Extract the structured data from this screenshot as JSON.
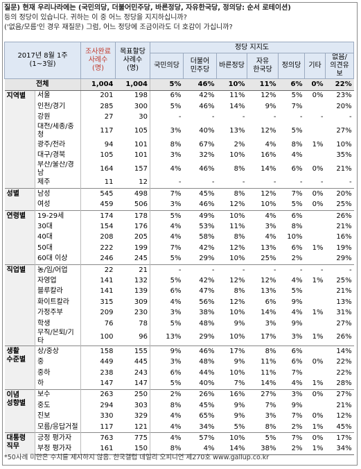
{
  "question": [
    "질문) 현재 우리나라에는 (국민의당, 더불어민주당, 바른정당, 자유한국당, 정의당: 순서 로테이션)",
    "등의 정당이 있습니다. 귀하는 이 중 어느 정당을 지지하십니까?",
    "('없음/모름'인 경우 재질문) 그럼, 어느 정당에 조금이라도 더 호감이 가십니까?"
  ],
  "table": {
    "header": {
      "period": "2017년 8월 1주\n(1~3일)",
      "sample": "조사완료\n사례수\n(명)",
      "target": "목표할당\n사례수\n(명)",
      "group": "정당 지지도",
      "columns": [
        "국민의당",
        "더불어\n민주당",
        "바른정당",
        "자유\n한국당",
        "정의당",
        "기타",
        "없음/\n의견유보"
      ]
    },
    "total": {
      "label": "전체",
      "sample": "1,004",
      "target": "1,004",
      "values": [
        "5%",
        "46%",
        "10%",
        "11%",
        "6%",
        "0%",
        "22%"
      ]
    },
    "groups": [
      {
        "label": "지역별",
        "rows": [
          {
            "label": "서울",
            "sample": "201",
            "target": "198",
            "values": [
              "6%",
              "42%",
              "11%",
              "12%",
              "5%",
              "0%",
              "23%"
            ]
          },
          {
            "label": "인천/경기",
            "sample": "285",
            "target": "300",
            "values": [
              "5%",
              "46%",
              "14%",
              "9%",
              "7%",
              null,
              "20%"
            ]
          },
          {
            "label": "강원",
            "sample": "27",
            "target": "30",
            "values": [
              "-",
              "-",
              "-",
              "-",
              "-",
              "-",
              "-"
            ]
          },
          {
            "label": "대전/세종/충청",
            "sample": "117",
            "target": "105",
            "values": [
              "3%",
              "40%",
              "13%",
              "12%",
              "5%",
              null,
              "27%"
            ]
          },
          {
            "label": "광주/전라",
            "sample": "94",
            "target": "101",
            "values": [
              "8%",
              "67%",
              "2%",
              "4%",
              "8%",
              "1%",
              "10%"
            ]
          },
          {
            "label": "대구/경북",
            "sample": "105",
            "target": "101",
            "values": [
              "3%",
              "32%",
              "10%",
              "16%",
              "4%",
              null,
              "35%"
            ]
          },
          {
            "label": "부산/울산/경남",
            "sample": "164",
            "target": "157",
            "values": [
              "4%",
              "46%",
              "8%",
              "14%",
              "6%",
              "0%",
              "21%"
            ]
          },
          {
            "label": "제주",
            "sample": "11",
            "target": "12",
            "values": [
              "-",
              "-",
              "-",
              "-",
              "-",
              "-",
              "-"
            ]
          }
        ]
      },
      {
        "label": "성별",
        "rows": [
          {
            "label": "남성",
            "sample": "545",
            "target": "498",
            "values": [
              "7%",
              "45%",
              "8%",
              "12%",
              "7%",
              "0%",
              "20%"
            ]
          },
          {
            "label": "여성",
            "sample": "459",
            "target": "506",
            "values": [
              "3%",
              "46%",
              "12%",
              "10%",
              "5%",
              "0%",
              "25%"
            ]
          }
        ]
      },
      {
        "label": "연령별",
        "rows": [
          {
            "label": "19-29세",
            "sample": "174",
            "target": "178",
            "values": [
              "5%",
              "49%",
              "10%",
              "4%",
              "6%",
              null,
              "26%"
            ]
          },
          {
            "label": "30대",
            "sample": "154",
            "target": "176",
            "values": [
              "4%",
              "53%",
              "11%",
              "3%",
              "8%",
              null,
              "21%"
            ]
          },
          {
            "label": "40대",
            "sample": "208",
            "target": "205",
            "values": [
              "4%",
              "58%",
              "8%",
              "4%",
              "10%",
              null,
              "16%"
            ]
          },
          {
            "label": "50대",
            "sample": "222",
            "target": "199",
            "values": [
              "7%",
              "42%",
              "12%",
              "13%",
              "6%",
              "1%",
              "19%"
            ]
          },
          {
            "label": "60대 이상",
            "sample": "246",
            "target": "245",
            "values": [
              "5%",
              "29%",
              "10%",
              "25%",
              "2%",
              null,
              "29%"
            ]
          }
        ]
      },
      {
        "label": "직업별",
        "rows": [
          {
            "label": "농/임/어업",
            "sample": "22",
            "target": "21",
            "values": [
              "-",
              "-",
              "-",
              "-",
              "-",
              "-",
              "-"
            ]
          },
          {
            "label": "자영업",
            "sample": "141",
            "target": "132",
            "values": [
              "5%",
              "42%",
              "12%",
              "12%",
              "4%",
              "1%",
              "25%"
            ]
          },
          {
            "label": "블루칼라",
            "sample": "141",
            "target": "139",
            "values": [
              "6%",
              "47%",
              "8%",
              "13%",
              "5%",
              null,
              "21%"
            ]
          },
          {
            "label": "화이트칼라",
            "sample": "315",
            "target": "309",
            "values": [
              "4%",
              "56%",
              "12%",
              "6%",
              "9%",
              null,
              "13%"
            ]
          },
          {
            "label": "가정주부",
            "sample": "209",
            "target": "230",
            "values": [
              "3%",
              "38%",
              "10%",
              "14%",
              "4%",
              "1%",
              "31%"
            ]
          },
          {
            "label": "학생",
            "sample": "76",
            "target": "78",
            "values": [
              "5%",
              "48%",
              "9%",
              "3%",
              "9%",
              null,
              "27%"
            ]
          },
          {
            "label": "무직/은퇴/기타",
            "sample": "100",
            "target": "96",
            "values": [
              "13%",
              "29%",
              "10%",
              "17%",
              "3%",
              "1%",
              "26%"
            ]
          }
        ]
      },
      {
        "label": "생활\n수준별",
        "rows": [
          {
            "label": "상/중상",
            "sample": "158",
            "target": "155",
            "values": [
              "9%",
              "46%",
              "17%",
              "8%",
              "6%",
              null,
              "14%"
            ]
          },
          {
            "label": "중",
            "sample": "449",
            "target": "445",
            "values": [
              "3%",
              "48%",
              "9%",
              "11%",
              "6%",
              "0%",
              "22%"
            ]
          },
          {
            "label": "중하",
            "sample": "238",
            "target": "243",
            "values": [
              "6%",
              "44%",
              "10%",
              "11%",
              "7%",
              null,
              "22%"
            ]
          },
          {
            "label": "하",
            "sample": "147",
            "target": "147",
            "values": [
              "5%",
              "40%",
              "7%",
              "14%",
              "4%",
              "1%",
              "28%"
            ]
          }
        ]
      },
      {
        "label": "이념\n성향별",
        "rows": [
          {
            "label": "보수",
            "sample": "263",
            "target": "250",
            "values": [
              "2%",
              "26%",
              "16%",
              "27%",
              "3%",
              "0%",
              "27%"
            ]
          },
          {
            "label": "중도",
            "sample": "294",
            "target": "303",
            "values": [
              "8%",
              "45%",
              "9%",
              "7%",
              "9%",
              null,
              "21%"
            ]
          },
          {
            "label": "진보",
            "sample": "330",
            "target": "329",
            "values": [
              "4%",
              "65%",
              "9%",
              "3%",
              "7%",
              "0%",
              "12%"
            ]
          },
          {
            "label": "모름/응답거절",
            "sample": "117",
            "target": "121",
            "values": [
              "4%",
              "34%",
              "5%",
              "8%",
              "2%",
              "1%",
              "45%"
            ]
          }
        ]
      },
      {
        "label": "대통령\n직무",
        "rows": [
          {
            "label": "긍정 평가자",
            "sample": "763",
            "target": "775",
            "values": [
              "4%",
              "57%",
              "10%",
              "5%",
              "7%",
              "0%",
              "17%"
            ]
          },
          {
            "label": "부정 평가자",
            "sample": "161",
            "target": "150",
            "values": [
              "8%",
              "4%",
              "14%",
              "38%",
              "2%",
              "1%",
              "34%"
            ]
          }
        ]
      }
    ]
  },
  "footnote": "*50사례 미만은 수치를 제시하지 않음. 한국갤럽 데일리 오피니언 제270호 www.gallup.co.kr"
}
